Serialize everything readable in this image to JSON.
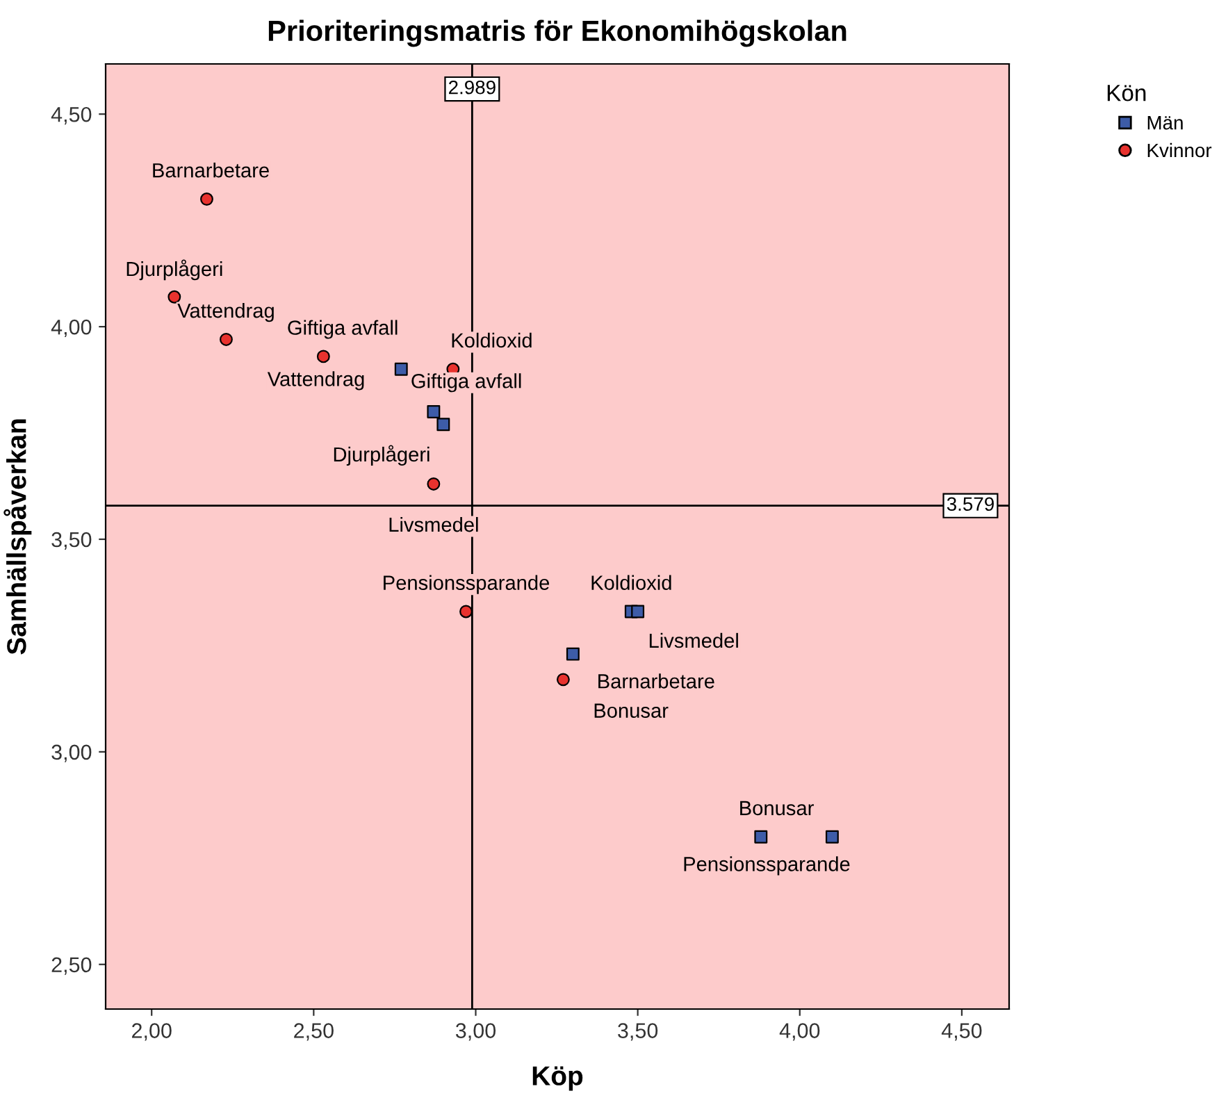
{
  "chart_data": {
    "type": "scatter",
    "title": "Prioriteringsmatris för Ekonomihögskolan",
    "xlabel": "Köp",
    "ylabel": "Samhällspåverkan",
    "legend_title": "Kön",
    "legend": "top right",
    "grid": false,
    "xlim": [
      1.858,
      4.646
    ],
    "ylim": [
      2.395,
      4.618
    ],
    "xticks": [
      {
        "value": 2.0,
        "label": "2,00"
      },
      {
        "value": 2.5,
        "label": "2,50"
      },
      {
        "value": 3.0,
        "label": "3,00"
      },
      {
        "value": 3.5,
        "label": "3,50"
      },
      {
        "value": 4.0,
        "label": "4,00"
      },
      {
        "value": 4.5,
        "label": "4,50"
      }
    ],
    "yticks": [
      {
        "value": 2.5,
        "label": "2,50"
      },
      {
        "value": 3.0,
        "label": "3,00"
      },
      {
        "value": 3.5,
        "label": "3,50"
      },
      {
        "value": 4.0,
        "label": "4,00"
      },
      {
        "value": 4.5,
        "label": "4,50"
      }
    ],
    "series": [
      {
        "name": "Män",
        "color": "#3d5ca8",
        "marker": "square",
        "x": [
          2.77,
          2.87,
          2.9,
          3.48,
          3.5,
          3.3,
          3.88,
          4.1
        ],
        "values": [
          3.9,
          3.8,
          3.77,
          3.33,
          3.33,
          3.23,
          2.8,
          2.8
        ]
      },
      {
        "name": "Kvinnor",
        "color": "#e8322e",
        "marker": "circle",
        "x": [
          2.17,
          2.07,
          2.23,
          2.53,
          2.93,
          2.87,
          2.97,
          3.27
        ],
        "values": [
          4.3,
          4.07,
          3.97,
          3.93,
          3.9,
          3.63,
          3.33,
          3.17
        ]
      }
    ],
    "annotations": [
      {
        "text": "Vattendrag",
        "x": 2.77,
        "y": 3.9
      },
      {
        "text": "Giftiga avfall",
        "x": 2.87,
        "y": 3.8
      },
      {
        "text": "Djurplågeri",
        "x": 2.9,
        "y": 3.77
      },
      {
        "text": "Koldioxid",
        "x": 3.48,
        "y": 3.33
      },
      {
        "text": "Livsmedel",
        "x": 3.5,
        "y": 3.33
      },
      {
        "text": "Barnarbetare",
        "x": 3.3,
        "y": 3.23
      },
      {
        "text": "Bonusar",
        "x": 3.88,
        "y": 2.8
      },
      {
        "text": "Pensionssparande",
        "x": 4.1,
        "y": 2.8
      },
      {
        "text": "Barnarbetare",
        "x": 2.17,
        "y": 4.3
      },
      {
        "text": "Djurplågeri",
        "x": 2.07,
        "y": 4.07
      },
      {
        "text": "Vattendrag",
        "x": 2.23,
        "y": 3.97
      },
      {
        "text": "Giftiga avfall",
        "x": 2.53,
        "y": 3.93
      },
      {
        "text": "Koldioxid",
        "x": 2.93,
        "y": 3.9
      },
      {
        "text": "Livsmedel",
        "x": 2.87,
        "y": 3.63
      },
      {
        "text": "Pensionssparande",
        "x": 2.97,
        "y": 3.33
      },
      {
        "text": "Bonusar",
        "x": 3.27,
        "y": 3.17
      }
    ],
    "ref_lines": [
      {
        "axis": "x",
        "value": 2.989,
        "label": "2.989",
        "color": "#000000"
      },
      {
        "axis": "y",
        "value": 3.579,
        "label": "3.579",
        "color": "#000000"
      }
    ]
  }
}
